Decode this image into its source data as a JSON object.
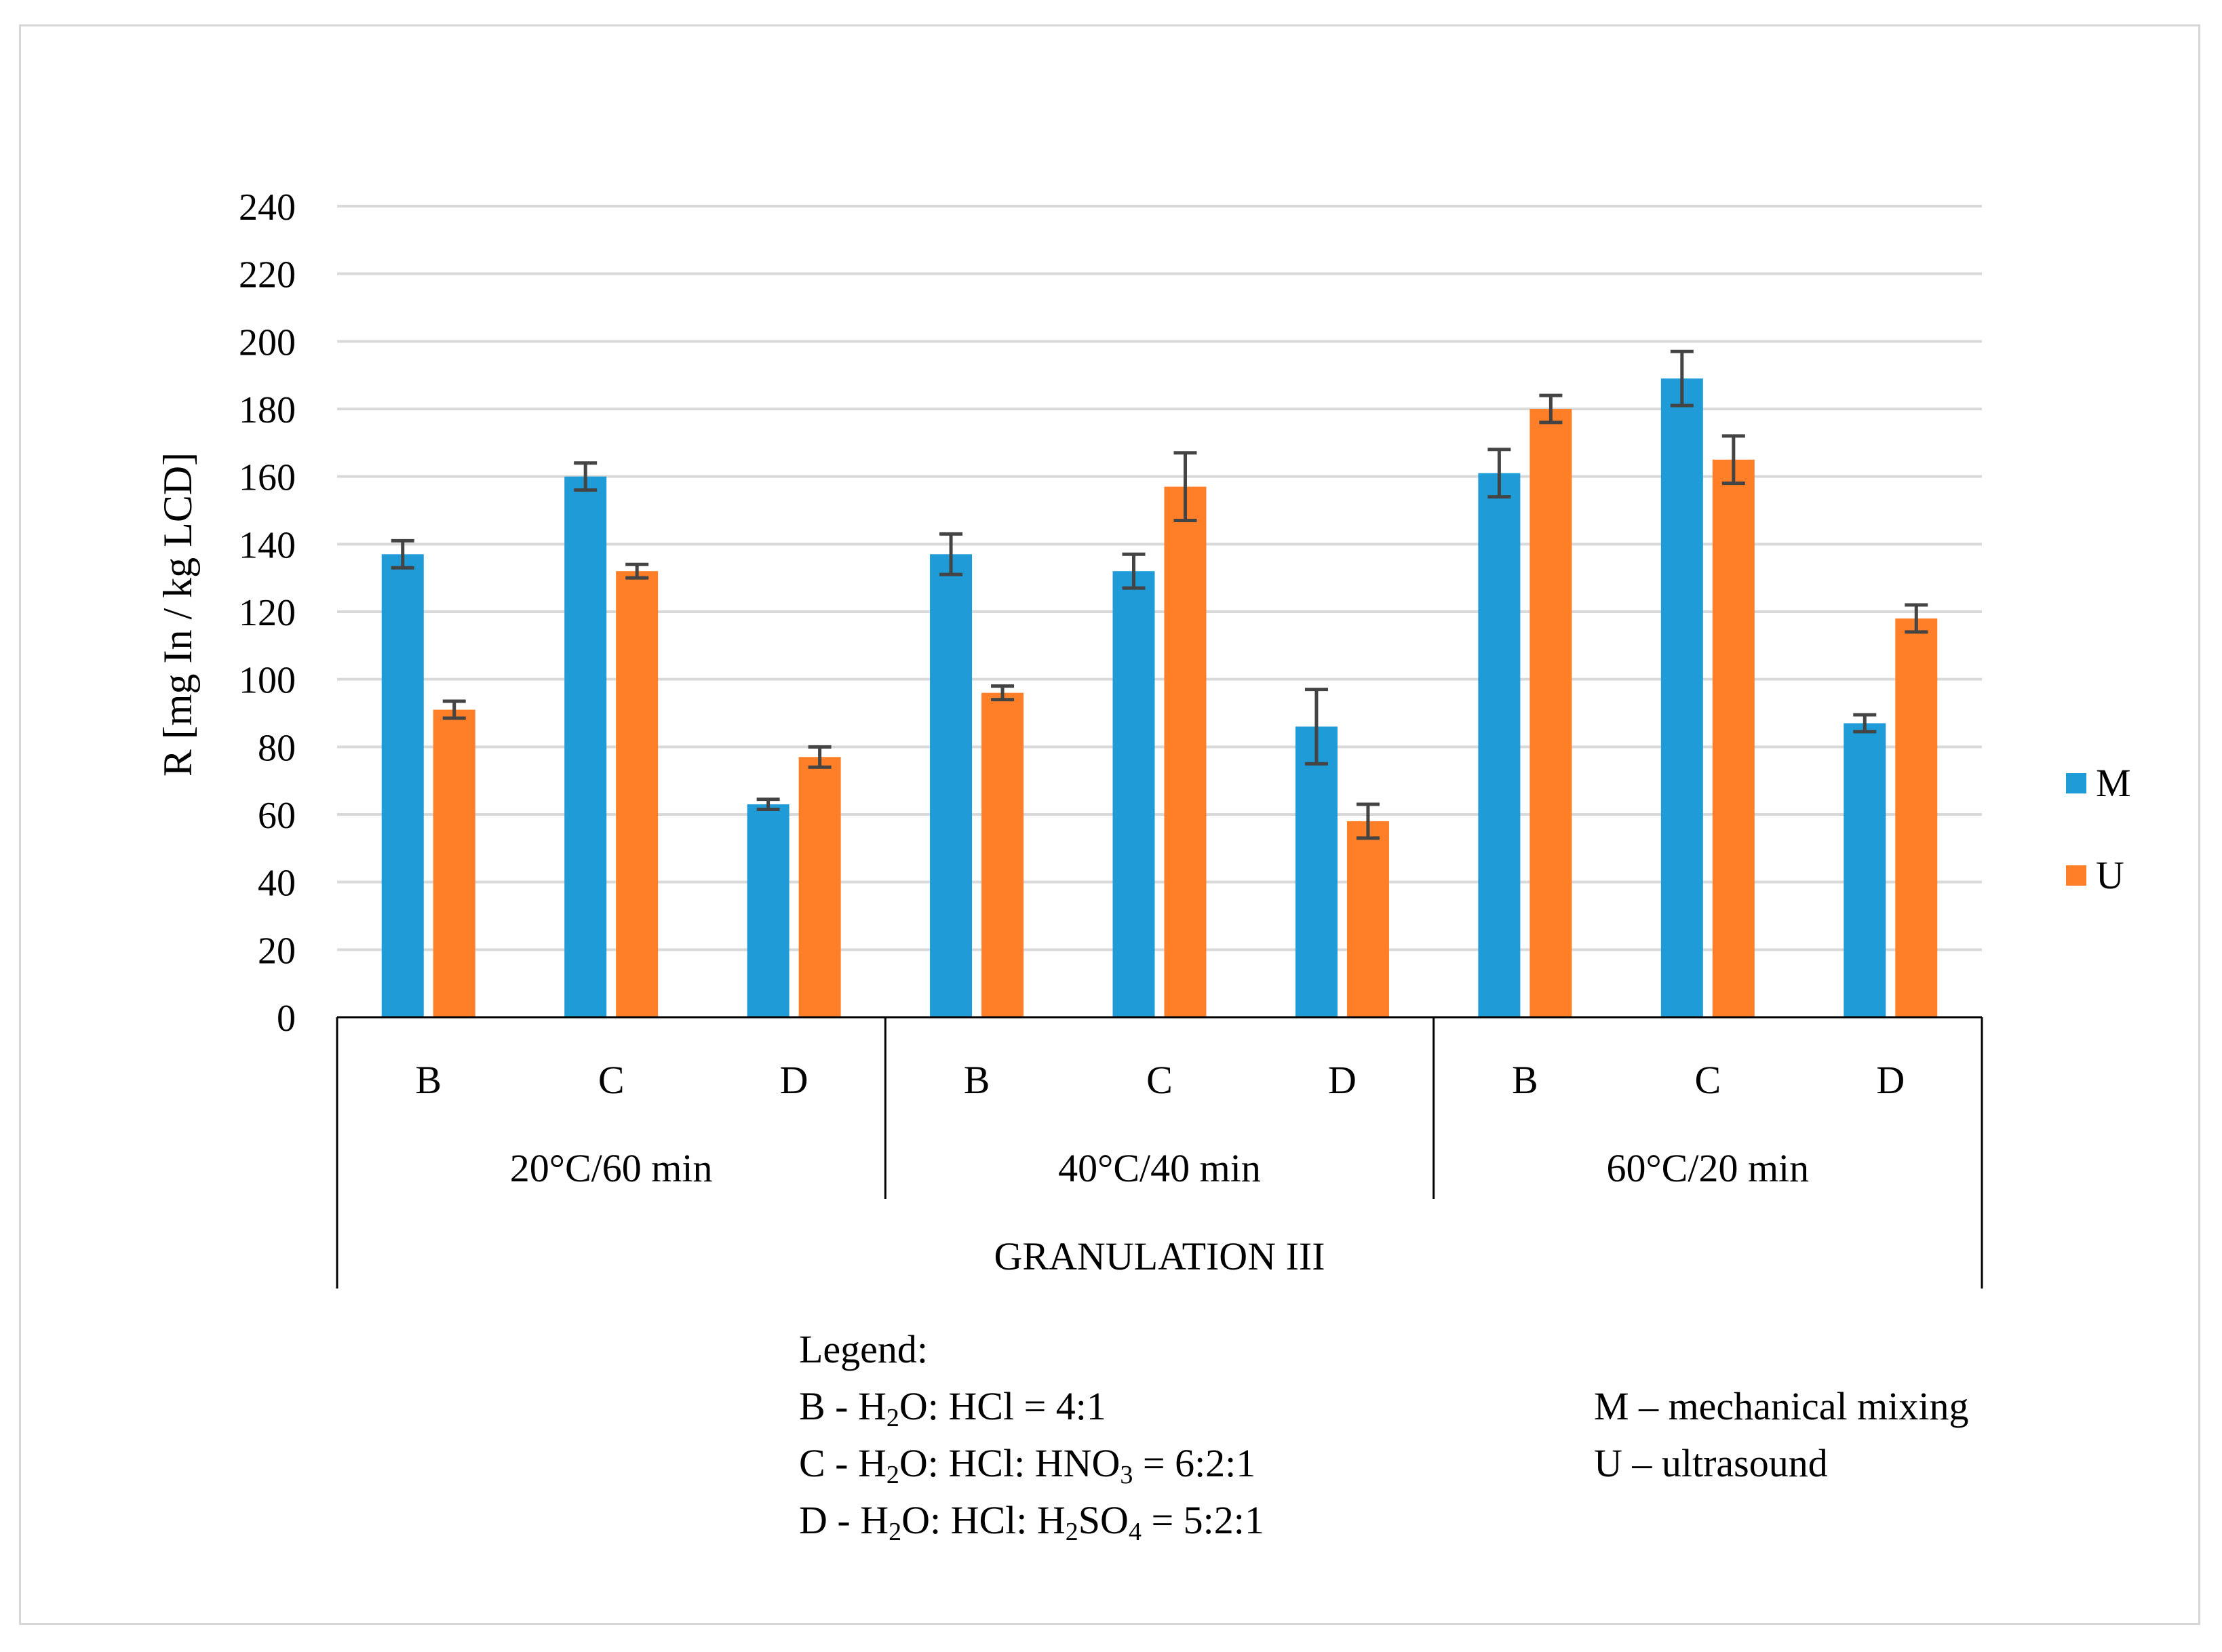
{
  "chart_data": {
    "type": "bar",
    "title": "",
    "ylabel": "R [mg In / kg LCD]",
    "xlabel": "GRANULATION III",
    "ylim": [
      0,
      240
    ],
    "yticks": [
      0,
      20,
      40,
      60,
      80,
      100,
      120,
      140,
      160,
      180,
      200,
      220,
      240
    ],
    "grid": true,
    "legend_position": "right",
    "groups": [
      "20°C/60 min",
      "40°C/40 min",
      "60°C/20 min"
    ],
    "categories": [
      "B",
      "C",
      "D",
      "B",
      "C",
      "D",
      "B",
      "C",
      "D"
    ],
    "series": [
      {
        "name": "M",
        "color": "#1f9bd7",
        "values": [
          137,
          160,
          63,
          137,
          132,
          86,
          161,
          189,
          87
        ],
        "errors": [
          4,
          4,
          1.5,
          6,
          5,
          11,
          7,
          8,
          2.5
        ]
      },
      {
        "name": "U",
        "color": "#fe7f27",
        "values": [
          91,
          132,
          77,
          96,
          157,
          58,
          180,
          165,
          118
        ],
        "errors": [
          2.5,
          2,
          3,
          2,
          10,
          5,
          4,
          7,
          4
        ]
      }
    ]
  },
  "notes": {
    "heading": "Legend:",
    "B_prefix": "B - H",
    "B_mid": "O: HCl = 4:1",
    "B_sub": "2",
    "C_prefix": "C - H",
    "C_sub": "2",
    "C_mid": "O: HCl:  HNO",
    "C_sub2": "3",
    "C_end": " = 6:2:1",
    "D_prefix": "D - H",
    "D_sub": "2",
    "D_mid": "O: HCl:  H",
    "D_sub2": "2",
    "D_mid2": "SO",
    "D_sub3": "4",
    "D_end": " = 5:2:1",
    "M_text": "M – mechanical  mixing",
    "U_text": "U – ultrasound"
  }
}
